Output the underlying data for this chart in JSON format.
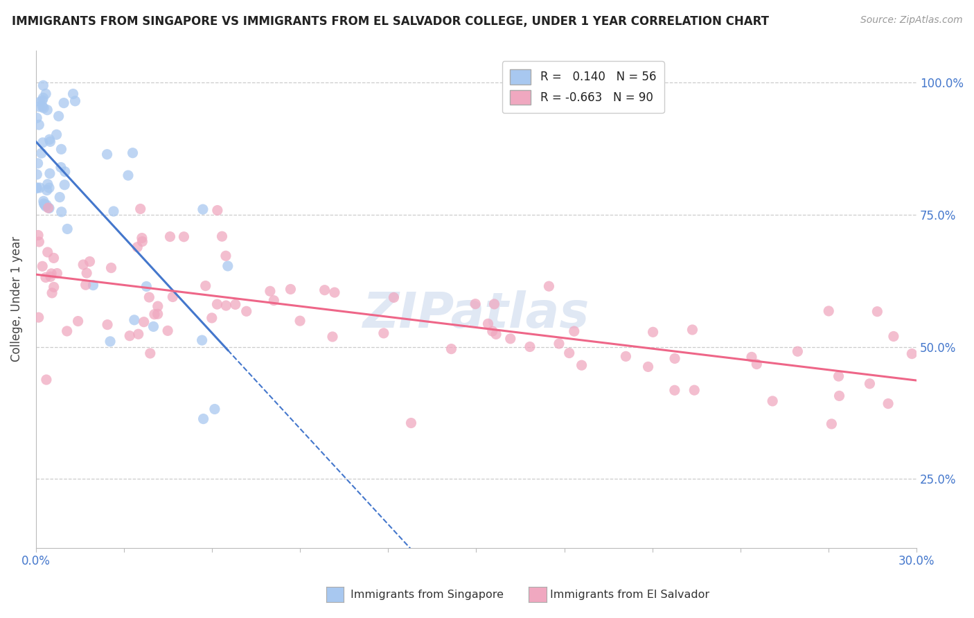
{
  "title": "IMMIGRANTS FROM SINGAPORE VS IMMIGRANTS FROM EL SALVADOR COLLEGE, UNDER 1 YEAR CORRELATION CHART",
  "source": "Source: ZipAtlas.com",
  "ylabel": "College, Under 1 year",
  "right_yticks": [
    "100.0%",
    "75.0%",
    "50.0%",
    "25.0%"
  ],
  "right_ytick_vals": [
    1.0,
    0.75,
    0.5,
    0.25
  ],
  "xlim": [
    0.0,
    0.3
  ],
  "ylim": [
    0.12,
    1.06
  ],
  "singapore_R": 0.14,
  "singapore_N": 56,
  "elsalvador_R": -0.663,
  "elsalvador_N": 90,
  "singapore_color": "#a8c8f0",
  "elsalvador_color": "#f0a8c0",
  "singapore_line_color": "#4477cc",
  "elsalvador_line_color": "#ee6688",
  "watermark": "ZIPatlas",
  "background_color": "#ffffff",
  "grid_color": "#cccccc"
}
